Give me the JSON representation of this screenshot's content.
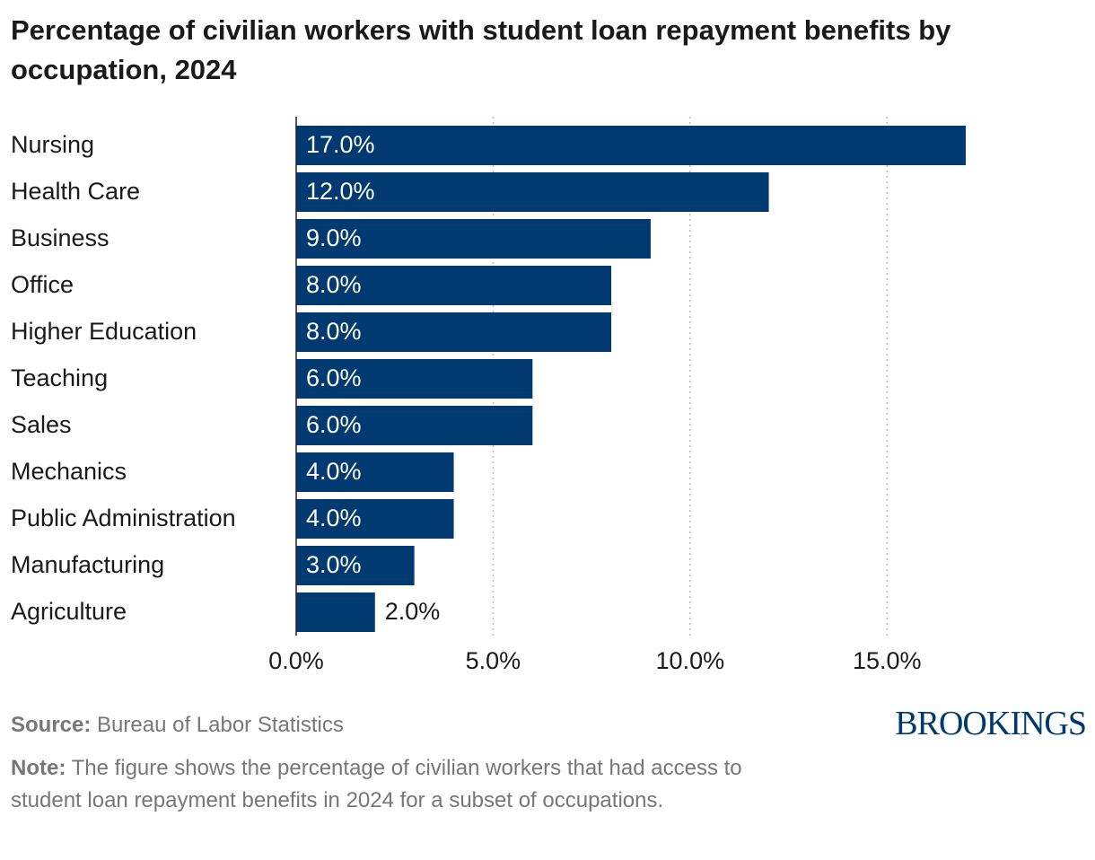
{
  "chart_data": {
    "type": "bar",
    "orientation": "horizontal",
    "title": "Percentage of civilian workers with student loan repayment benefits by occupation, 2024",
    "categories": [
      "Nursing",
      "Health Care",
      "Business",
      "Office",
      "Higher Education",
      "Teaching",
      "Sales",
      "Mechanics",
      "Public Administration",
      "Manufacturing",
      "Agriculture"
    ],
    "values": [
      17,
      12,
      9,
      8,
      8,
      6,
      6,
      4,
      4,
      3,
      2
    ],
    "value_labels": [
      "17.0%",
      "12.0%",
      "9.0%",
      "8.0%",
      "8.0%",
      "6.0%",
      "6.0%",
      "4.0%",
      "4.0%",
      "3.0%",
      "2.0%"
    ],
    "color": "#003a70",
    "xlim": [
      0,
      17
    ],
    "xticks": [
      {
        "value": 0,
        "label": "0.0%"
      },
      {
        "value": 5,
        "label": "5.0%"
      },
      {
        "value": 10,
        "label": "10.0%"
      },
      {
        "value": 15,
        "label": "15.0%"
      }
    ],
    "grid": true,
    "source_label": "Source:",
    "source": "Bureau of Labor Statistics",
    "note_label": "Note:",
    "note": "The figure shows the percentage of civilian workers that had access to student loan repayment benefits in 2024 for a subset of occupations.",
    "brand": "BROOKINGS"
  }
}
